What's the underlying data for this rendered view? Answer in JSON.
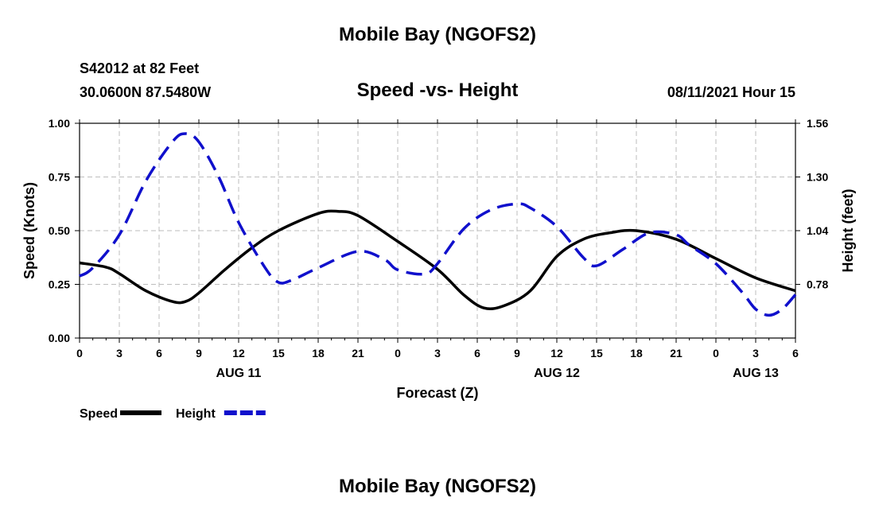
{
  "header": {
    "title": "Mobile Bay (NGOFS2)",
    "station": "S42012 at 82 Feet",
    "coords": "30.0600N  87.5480W",
    "datetime": "08/11/2021 Hour 15"
  },
  "footer": {
    "title": "Mobile Bay (NGOFS2)"
  },
  "chart_data": {
    "type": "line",
    "title": "Speed -vs- Height",
    "xlabel": "Forecast (Z)",
    "ylabel": "Speed (Knots)",
    "ylabel_right": "Height (feet)",
    "ylim": [
      0,
      1.0
    ],
    "ylim_right": [
      0.52,
      1.56
    ],
    "yticks": [
      "0.00",
      "0.25",
      "0.50",
      "0.75",
      "1.00"
    ],
    "yticks_right": [
      "0.78",
      "1.04",
      "1.30",
      "1.56"
    ],
    "xticks": [
      "0",
      "3",
      "6",
      "9",
      "12",
      "15",
      "18",
      "21",
      "0",
      "3",
      "6",
      "9",
      "12",
      "15",
      "18",
      "21",
      "0",
      "3",
      "6"
    ],
    "day_labels": [
      {
        "hour": 12,
        "label": "AUG 11"
      },
      {
        "hour": 36,
        "label": "AUG 12"
      },
      {
        "hour": 51,
        "label": "AUG 13"
      }
    ],
    "x_range": [
      0,
      54
    ],
    "grid": true,
    "legend_position": "bottom-left",
    "series": [
      {
        "name": "Speed",
        "axis": "left",
        "color": "#000000",
        "style": "solid",
        "x": [
          0,
          2,
          3,
          5,
          7,
          8,
          9,
          11,
          13,
          15,
          18,
          19.5,
          21,
          24,
          27,
          29,
          30.5,
          32,
          34,
          36,
          38,
          40,
          42,
          45,
          48,
          51,
          54
        ],
        "values": [
          0.35,
          0.33,
          0.3,
          0.22,
          0.17,
          0.17,
          0.21,
          0.32,
          0.42,
          0.5,
          0.58,
          0.59,
          0.57,
          0.45,
          0.32,
          0.2,
          0.14,
          0.15,
          0.22,
          0.38,
          0.46,
          0.49,
          0.5,
          0.46,
          0.37,
          0.28,
          0.22
        ]
      },
      {
        "name": "Height",
        "axis": "right",
        "color": "#1010cc",
        "style": "dashed",
        "x": [
          0,
          1,
          3,
          5,
          7,
          8,
          9,
          10.5,
          12,
          14,
          15,
          16,
          18,
          21,
          23,
          24,
          26,
          27,
          29,
          31,
          33,
          34,
          36,
          38,
          39,
          41,
          43,
          45,
          46,
          48,
          50,
          51,
          52,
          53,
          54
        ],
        "values": [
          0.82,
          0.86,
          1.02,
          1.28,
          1.47,
          1.51,
          1.47,
          1.3,
          1.08,
          0.86,
          0.79,
          0.8,
          0.86,
          0.94,
          0.9,
          0.85,
          0.83,
          0.88,
          1.05,
          1.14,
          1.17,
          1.15,
          1.06,
          0.91,
          0.87,
          0.95,
          1.03,
          1.02,
          0.97,
          0.88,
          0.74,
          0.66,
          0.63,
          0.66,
          0.73
        ]
      }
    ]
  }
}
